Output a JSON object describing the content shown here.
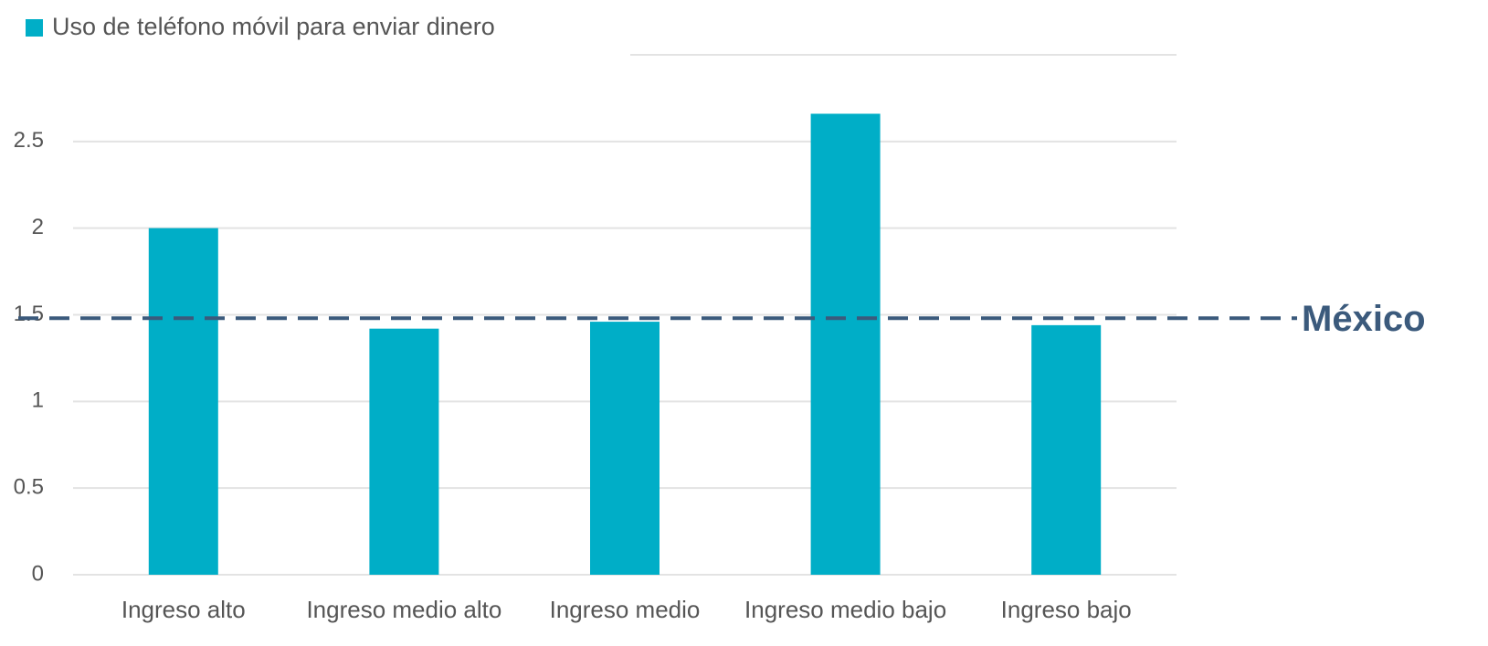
{
  "chart_data": {
    "type": "bar",
    "categories": [
      "Ingreso alto",
      "Ingreso medio alto",
      "Ingreso medio",
      "Ingreso medio bajo",
      "Ingreso bajo"
    ],
    "series": [
      {
        "name": "Uso de teléfono móvil para enviar dinero",
        "color": "#00aec7",
        "values": [
          2.0,
          1.42,
          1.46,
          2.66,
          1.44
        ]
      }
    ],
    "ylim": [
      0,
      3
    ],
    "yticks": [
      0,
      0.5,
      1,
      1.5,
      2,
      2.5
    ],
    "grid": true,
    "legend": "top-left",
    "reference_line": {
      "label": "México",
      "value": 1.48,
      "color": "#3b5a7c"
    }
  }
}
